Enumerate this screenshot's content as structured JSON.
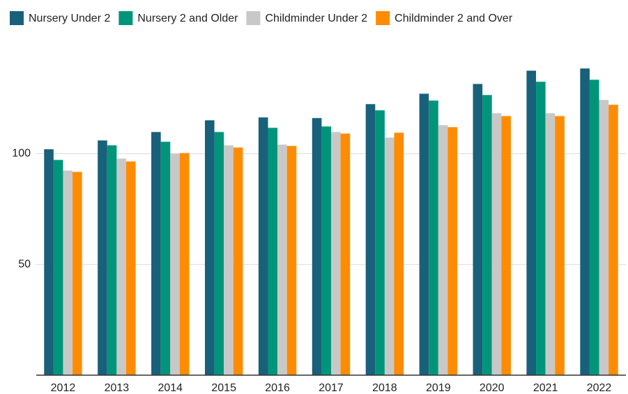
{
  "chart_data": {
    "type": "bar",
    "categories": [
      "2012",
      "2013",
      "2014",
      "2015",
      "2016",
      "2017",
      "2018",
      "2019",
      "2020",
      "2021",
      "2022"
    ],
    "series": [
      {
        "name": "Nursery Under 2",
        "color": "#19607a",
        "values": [
          102,
          106,
          109.8,
          115.1,
          116.4,
          116.1,
          122.4,
          127.1,
          131.5,
          137.5,
          138.5
        ]
      },
      {
        "name": "Nursery 2 and Older",
        "color": "#00957a",
        "values": [
          97.2,
          103.8,
          105.4,
          109.8,
          111.7,
          112.3,
          119.6,
          124,
          126.5,
          132.5,
          133.4
        ]
      },
      {
        "name": "Childminder Under 2",
        "color": "#c8c8c8",
        "values": [
          92.4,
          97.8,
          100,
          103.8,
          104.1,
          109.8,
          107.3,
          112.9,
          118.3,
          118.3,
          124.3
        ]
      },
      {
        "name": "Childminder 2 and Over",
        "color": "#ff8c00",
        "values": [
          91.8,
          96.5,
          100.3,
          102.8,
          103.5,
          109.1,
          109.5,
          112,
          117,
          117,
          122.1
        ]
      }
    ],
    "ylim": [
      0,
      148
    ],
    "yticks": [
      50,
      100
    ],
    "grid": true,
    "legend": "top"
  }
}
